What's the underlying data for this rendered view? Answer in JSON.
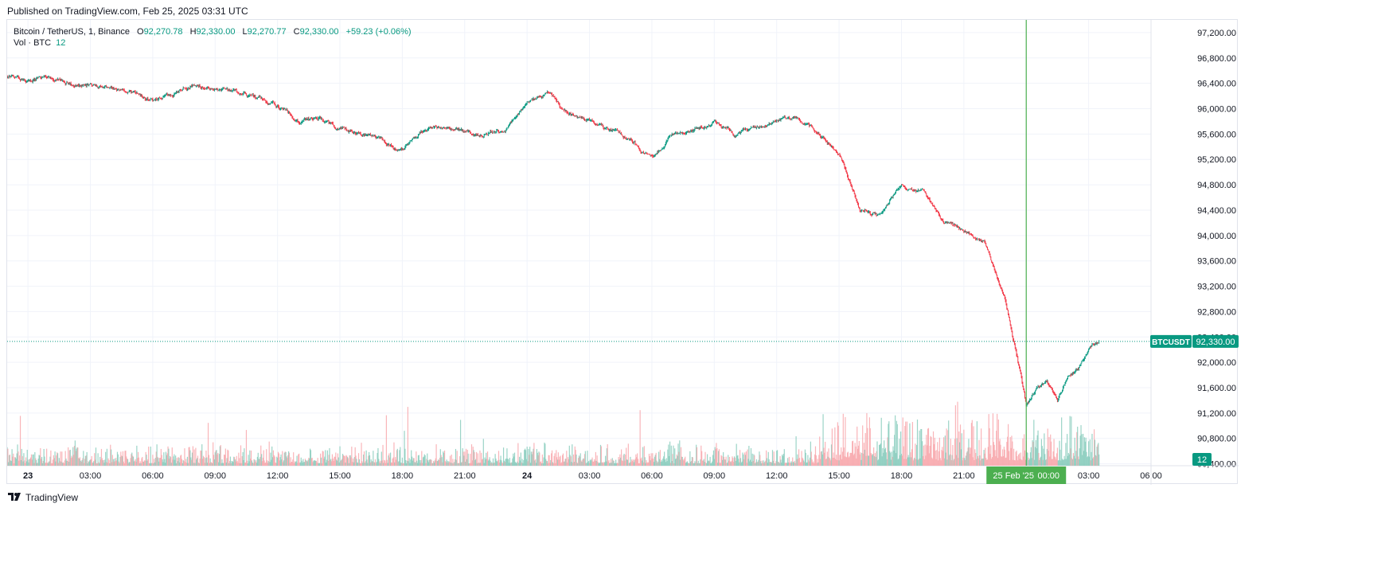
{
  "caption": "Published on TradingView.com, Feb 25, 2025 03:31 UTC",
  "footer": {
    "brand": "TradingView",
    "logo_icon": "tradingview-logo-icon"
  },
  "legend": {
    "symbol": "Bitcoin / TetherUS, 1, Binance",
    "o_label": "O",
    "o_value": "92,270.78",
    "h_label": "H",
    "h_value": "92,330.00",
    "l_label": "L",
    "l_value": "92,270.77",
    "c_label": "C",
    "c_value": "92,330.00",
    "change": "+59.23 (+0.06%)",
    "vol_label": "Vol · BTC",
    "vol_value": "12"
  },
  "colors": {
    "up": "#089981",
    "down": "#f23645",
    "grid": "#f0f3fa",
    "marker": "#4caf50",
    "axis_text": "#131722"
  },
  "chart_data": {
    "type": "candlestick",
    "symbol_badge": "BTCUSDT",
    "last_price_label": "92,330.00",
    "last_price": 92330,
    "volume_badge": "12",
    "crosshair_label_date": "25 Feb '25",
    "crosshair_label_time": "00:00",
    "y_ticks": [
      "97,200.00",
      "96,800.00",
      "96,400.00",
      "96,000.00",
      "95,600.00",
      "95,200.00",
      "94,800.00",
      "94,400.00",
      "94,000.00",
      "93,600.00",
      "93,200.00",
      "92,800.00",
      "92,400.00",
      "92,000.00",
      "91,600.00",
      "91,200.00",
      "90,800.00",
      "90,400.00"
    ],
    "y_tick_values": [
      97200,
      96800,
      96400,
      96000,
      95600,
      95200,
      94800,
      94400,
      94000,
      93600,
      93200,
      92800,
      92400,
      92000,
      91600,
      91200,
      90800,
      90400
    ],
    "ylim": [
      90370,
      97400
    ],
    "x_ticks": [
      "23",
      "03:00",
      "06:00",
      "09:00",
      "12:00",
      "15:00",
      "18:00",
      "21:00",
      "24",
      "03:00",
      "06:00",
      "09:00",
      "12:00",
      "15:00",
      "18:00",
      "21:00",
      "00:00",
      "03:00",
      "06:00"
    ],
    "x_tick_hours": [
      0,
      3,
      6,
      9,
      12,
      15,
      18,
      21,
      24,
      27,
      30,
      33,
      36,
      39,
      42,
      45,
      48,
      51,
      54
    ],
    "x_bold": [
      0,
      8
    ],
    "x_range_hours": [
      -1,
      54
    ],
    "data_end_hours": 51.5,
    "crosshair_hours": 48,
    "price_path": [
      [
        -1,
        96500
      ],
      [
        0,
        96450
      ],
      [
        1,
        96500
      ],
      [
        2,
        96400
      ],
      [
        3,
        96380
      ],
      [
        4,
        96300
      ],
      [
        5,
        96250
      ],
      [
        6,
        96150
      ],
      [
        7,
        96220
      ],
      [
        8,
        96400
      ],
      [
        9,
        96300
      ],
      [
        10,
        96280
      ],
      [
        11,
        96150
      ],
      [
        12,
        96050
      ],
      [
        13,
        95800
      ],
      [
        14,
        95850
      ],
      [
        15,
        95700
      ],
      [
        16,
        95600
      ],
      [
        17,
        95500
      ],
      [
        18,
        95350
      ],
      [
        19,
        95650
      ],
      [
        20,
        95700
      ],
      [
        21,
        95650
      ],
      [
        22,
        95600
      ],
      [
        23,
        95700
      ],
      [
        24,
        96100
      ],
      [
        25,
        96250
      ],
      [
        26,
        95900
      ],
      [
        27,
        95800
      ],
      [
        28,
        95650
      ],
      [
        29,
        95500
      ],
      [
        30,
        95200
      ],
      [
        31,
        95600
      ],
      [
        32,
        95650
      ],
      [
        33,
        95800
      ],
      [
        34,
        95600
      ],
      [
        35,
        95700
      ],
      [
        36,
        95800
      ],
      [
        37,
        95850
      ],
      [
        38,
        95600
      ],
      [
        39,
        95300
      ],
      [
        40,
        94400
      ],
      [
        41,
        94300
      ],
      [
        42,
        94800
      ],
      [
        43,
        94700
      ],
      [
        44,
        94200
      ],
      [
        45,
        94100
      ],
      [
        46,
        93900
      ],
      [
        47,
        93000
      ],
      [
        47.5,
        92200
      ],
      [
        48,
        91300
      ],
      [
        48.5,
        91600
      ],
      [
        49,
        91700
      ],
      [
        49.5,
        91400
      ],
      [
        50,
        91800
      ],
      [
        50.5,
        91900
      ],
      [
        51,
        92200
      ],
      [
        51.5,
        92330
      ]
    ],
    "volume_ylim": [
      0,
      160
    ]
  }
}
